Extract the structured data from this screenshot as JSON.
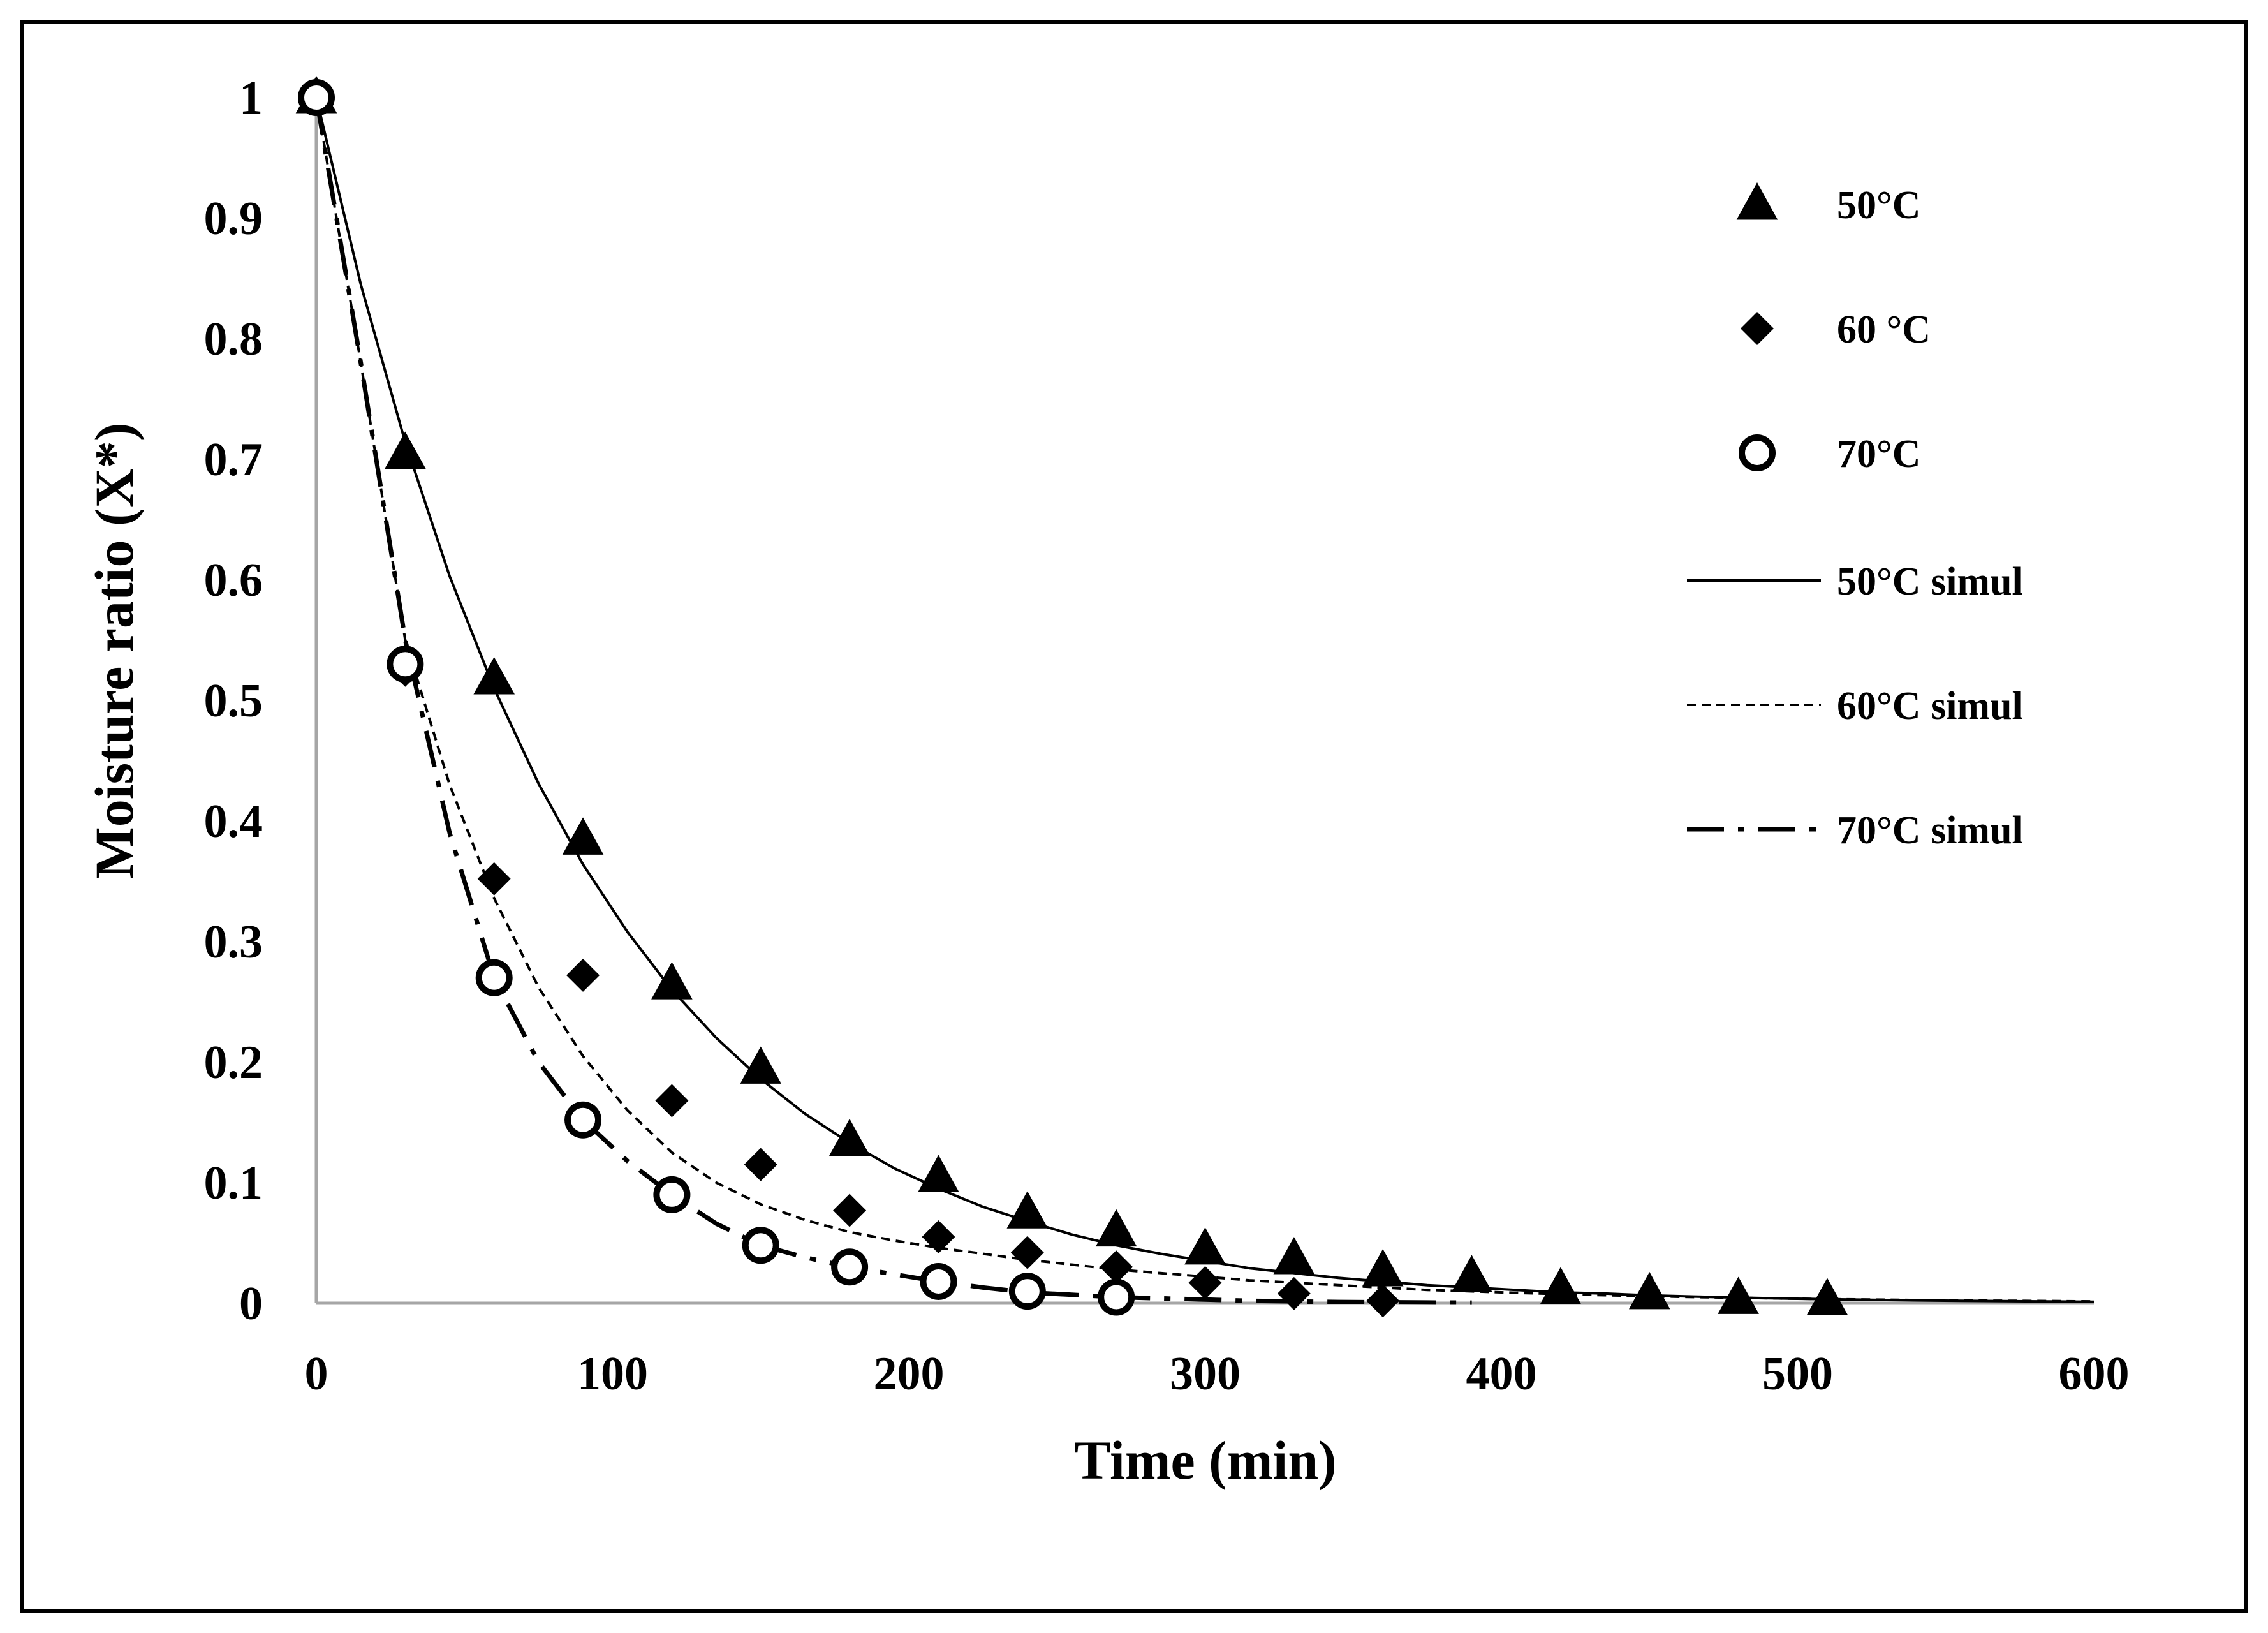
{
  "chart_data": {
    "type": "scatter",
    "title": "",
    "xlabel": "Time (min)",
    "ylabel": "Moisture ratio  (X*)",
    "xlim": [
      0,
      600
    ],
    "ylim": [
      0,
      1
    ],
    "xticks": [
      0,
      100,
      200,
      300,
      400,
      500,
      600
    ],
    "yticks": [
      0,
      0.1,
      0.2,
      0.3,
      0.4,
      0.5,
      0.6,
      0.7,
      0.8,
      0.9,
      1
    ],
    "ytick_labels": [
      "0",
      "0.1",
      "0.2",
      "0.3",
      "0.4",
      "0.5",
      "0.6",
      "0.7",
      "0.8",
      "0.9",
      "1"
    ],
    "grid": false,
    "legend_position": "right",
    "series": [
      {
        "name": "50°C",
        "kind": "points",
        "marker": "triangle",
        "x": [
          0,
          30,
          60,
          90,
          120,
          150,
          180,
          210,
          240,
          270,
          300,
          330,
          360,
          390,
          420,
          450,
          480,
          510
        ],
        "values": [
          1.0,
          0.705,
          0.518,
          0.385,
          0.265,
          0.195,
          0.135,
          0.105,
          0.075,
          0.06,
          0.045,
          0.037,
          0.027,
          0.022,
          0.012,
          0.008,
          0.004,
          0.003
        ]
      },
      {
        "name": "60 °C",
        "kind": "points",
        "marker": "diamond",
        "x": [
          0,
          30,
          60,
          90,
          120,
          150,
          180,
          210,
          240,
          270,
          300,
          330,
          360
        ],
        "values": [
          1.0,
          0.525,
          0.352,
          0.272,
          0.168,
          0.115,
          0.077,
          0.055,
          0.042,
          0.03,
          0.017,
          0.008,
          0.002
        ]
      },
      {
        "name": "70°C",
        "kind": "points",
        "marker": "circle-open",
        "x": [
          0,
          30,
          60,
          90,
          120,
          150,
          180,
          210,
          240,
          270
        ],
        "values": [
          1.0,
          0.53,
          0.27,
          0.152,
          0.09,
          0.048,
          0.03,
          0.018,
          0.01,
          0.005
        ]
      },
      {
        "name": "50°C simul",
        "kind": "line",
        "dash": "solid",
        "x": [
          0,
          15,
          30,
          45,
          60,
          75,
          90,
          105,
          120,
          135,
          150,
          165,
          180,
          195,
          210,
          225,
          240,
          255,
          270,
          285,
          300,
          315,
          330,
          345,
          360,
          375,
          390,
          405,
          420,
          435,
          450,
          465,
          480,
          495,
          510,
          525,
          540,
          555,
          570,
          585,
          600
        ],
        "values": [
          1.0,
          0.845,
          0.714,
          0.603,
          0.51,
          0.431,
          0.364,
          0.308,
          0.26,
          0.22,
          0.186,
          0.157,
          0.133,
          0.112,
          0.095,
          0.08,
          0.068,
          0.057,
          0.048,
          0.041,
          0.035,
          0.029,
          0.025,
          0.021,
          0.018,
          0.015,
          0.013,
          0.011,
          0.009,
          0.008,
          0.0065,
          0.0055,
          0.0046,
          0.0039,
          0.0033,
          0.0028,
          0.0024,
          0.002,
          0.0017,
          0.0015,
          0.0012
        ]
      },
      {
        "name": "60°C simul",
        "kind": "line",
        "dash": "short",
        "x": [
          0,
          15,
          30,
          45,
          60,
          75,
          90,
          105,
          120,
          135,
          150,
          165,
          180,
          195,
          210,
          225,
          240,
          255,
          270,
          285,
          300,
          315,
          330,
          345,
          360,
          375,
          390,
          405,
          420,
          435,
          450,
          465,
          480,
          495,
          510,
          525,
          540,
          555,
          570,
          585,
          600
        ],
        "values": [
          1.0,
          0.78,
          0.55,
          0.43,
          0.336,
          0.262,
          0.205,
          0.16,
          0.125,
          0.1,
          0.082,
          0.069,
          0.059,
          0.052,
          0.046,
          0.041,
          0.036,
          0.032,
          0.028,
          0.025,
          0.022,
          0.019,
          0.017,
          0.015,
          0.013,
          0.011,
          0.0098,
          0.0086,
          0.0075,
          0.0066,
          0.0058,
          0.0051,
          0.0045,
          0.0039,
          0.0034,
          0.003,
          0.0026,
          0.0023,
          0.002,
          0.0018,
          0.0015
        ]
      },
      {
        "name": "70°C simul",
        "kind": "line",
        "dash": "dash-dot",
        "x": [
          0,
          15,
          30,
          45,
          60,
          75,
          90,
          105,
          120,
          135,
          150,
          165,
          180,
          195,
          210,
          225,
          240,
          255,
          270,
          285,
          300,
          315,
          330,
          345,
          360,
          375,
          390
        ],
        "values": [
          1.0,
          0.78,
          0.55,
          0.39,
          0.27,
          0.2,
          0.152,
          0.118,
          0.09,
          0.066,
          0.048,
          0.038,
          0.03,
          0.024,
          0.018,
          0.013,
          0.009,
          0.007,
          0.005,
          0.004,
          0.003,
          0.002,
          0.0015,
          0.001,
          0.0008,
          0.0006,
          0.0005
        ]
      }
    ]
  }
}
